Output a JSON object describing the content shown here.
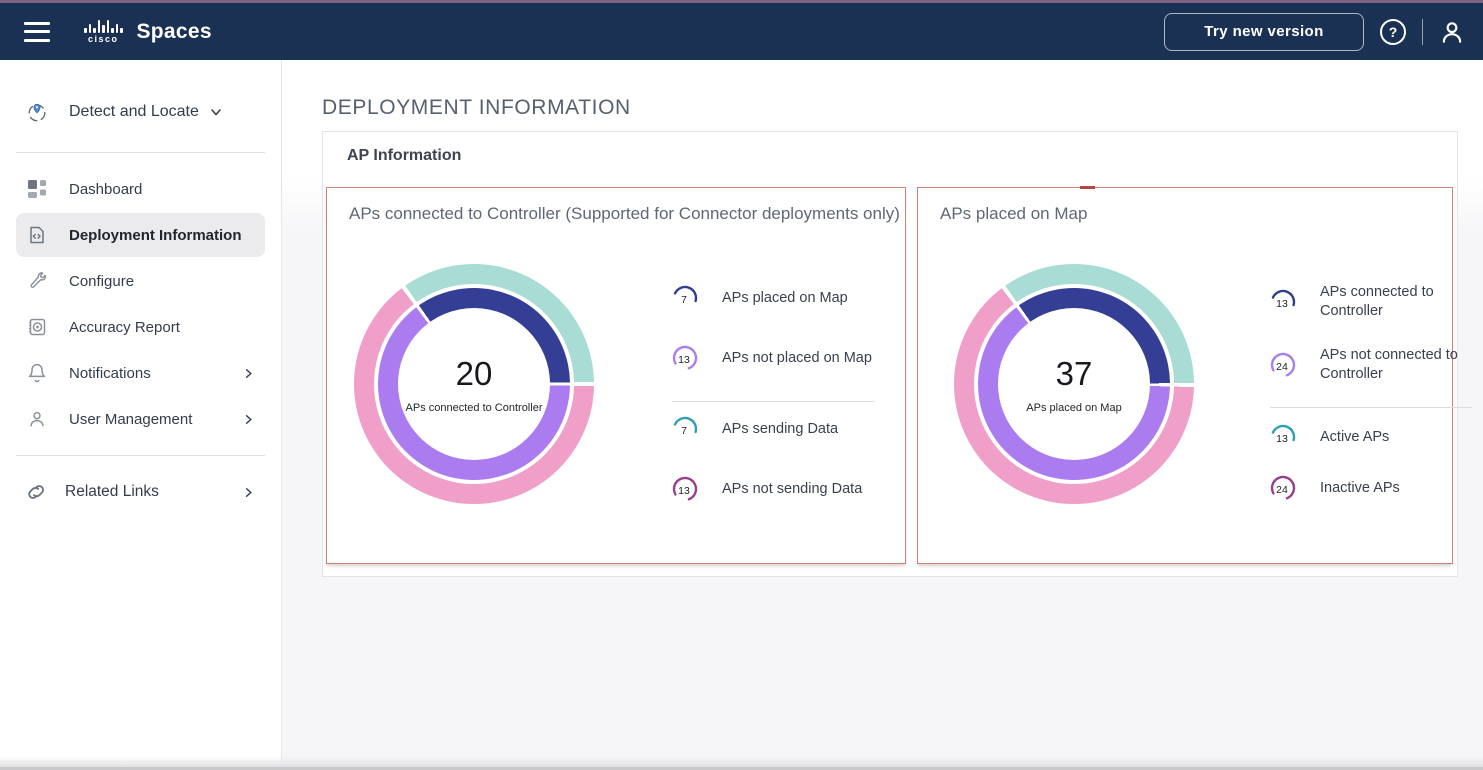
{
  "navbar": {
    "logo_text": "cisco",
    "brand": "Spaces",
    "try_new_version": "Try new version"
  },
  "sidebar": {
    "app": {
      "label": "Detect and Locate"
    },
    "items": [
      {
        "label": "Dashboard",
        "selected": false
      },
      {
        "label": "Deployment Information",
        "selected": true
      },
      {
        "label": "Configure",
        "selected": false
      },
      {
        "label": "Accuracy Report",
        "selected": false
      },
      {
        "label": "Notifications",
        "selected": false,
        "has_submenu": true
      },
      {
        "label": "User Management",
        "selected": false,
        "has_submenu": true
      }
    ],
    "related_links": "Related Links"
  },
  "main": {
    "page_title": "DEPLOYMENT INFORMATION",
    "card_title": "AP Information"
  },
  "colors": {
    "navbar_bg": "#1b3153",
    "top_strip": "#7e6384",
    "panel_border": "#cc8278",
    "donut_navy": "#333e94",
    "donut_purple": "#ab7cf0",
    "donut_teal": "#a9dcd4",
    "donut_pink": "#f0a0c8",
    "legend_navy": "#2e3e8f",
    "legend_purple": "#a87ef0",
    "legend_teal": "#2f9fb0",
    "legend_magenta": "#993e8d"
  },
  "chart_data": [
    {
      "type": "donut",
      "title": "APs connected to Controller (Supported for Connector deployments only)",
      "total": 20,
      "center_value": "20",
      "center_label": "APs connected to Controller",
      "start_angle_deg": 324,
      "rings": [
        {
          "name": "inner",
          "segments": [
            {
              "label": "APs placed on Map",
              "value": 7,
              "color": "#333e94"
            },
            {
              "label": "APs not placed on Map",
              "value": 13,
              "color": "#ab7cf0"
            }
          ]
        },
        {
          "name": "outer",
          "segments": [
            {
              "label": "APs sending Data",
              "value": 7,
              "color": "#a9dcd4"
            },
            {
              "label": "APs not sending Data",
              "value": 13,
              "color": "#f0a0c8"
            }
          ]
        }
      ],
      "legend": [
        {
          "value": 7,
          "label": "APs placed on Map",
          "color": "#2e3e8f",
          "divider_before": false
        },
        {
          "value": 13,
          "label": "APs not placed on Map",
          "color": "#a87ef0",
          "divider_before": false
        },
        {
          "value": 7,
          "label": "APs sending Data",
          "color": "#2f9fb0",
          "divider_before": true
        },
        {
          "value": 13,
          "label": "APs not sending Data",
          "color": "#993e8d",
          "divider_before": false
        }
      ]
    },
    {
      "type": "donut",
      "title": "APs placed on Map",
      "total": 37,
      "center_value": "37",
      "center_label": "APs placed on Map",
      "start_angle_deg": 324,
      "rings": [
        {
          "name": "inner",
          "segments": [
            {
              "label": "APs connected to Controller",
              "value": 13,
              "color": "#333e94"
            },
            {
              "label": "APs not connected to Controller",
              "value": 24,
              "color": "#ab7cf0"
            }
          ]
        },
        {
          "name": "outer",
          "segments": [
            {
              "label": "Active APs",
              "value": 13,
              "color": "#a9dcd4"
            },
            {
              "label": "Inactive APs",
              "value": 24,
              "color": "#f0a0c8"
            }
          ]
        }
      ],
      "legend": [
        {
          "value": 13,
          "label": "APs connected to Controller",
          "color": "#2e3e8f",
          "divider_before": false
        },
        {
          "value": 24,
          "label": "APs not connected to Controller",
          "color": "#a87ef0",
          "divider_before": false
        },
        {
          "value": 13,
          "label": "Active APs",
          "color": "#2f9fb0",
          "divider_before": true
        },
        {
          "value": 24,
          "label": "Inactive APs",
          "color": "#993e8d",
          "divider_before": false
        }
      ]
    }
  ]
}
